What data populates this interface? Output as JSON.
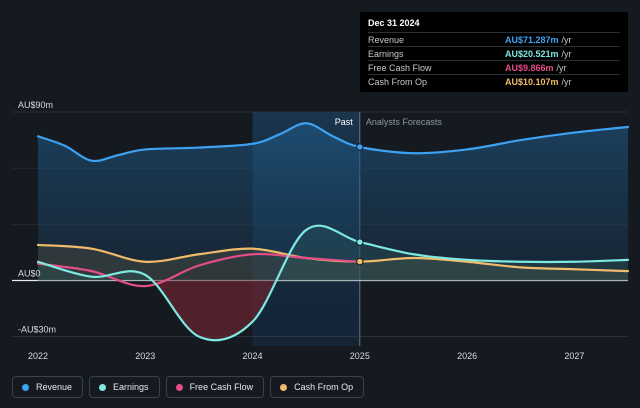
{
  "tooltip": {
    "date": "Dec 31 2024",
    "rows": [
      {
        "label": "Revenue",
        "value": "AU$71.287m",
        "unit": "/yr",
        "color": "#3ea2f2"
      },
      {
        "label": "Earnings",
        "value": "AU$20.521m",
        "unit": "/yr",
        "color": "#7ee8e3"
      },
      {
        "label": "Free Cash Flow",
        "value": "AU$9.866m",
        "unit": "/yr",
        "color": "#e44d87"
      },
      {
        "label": "Cash From Op",
        "value": "AU$10.107m",
        "unit": "/yr",
        "color": "#f0bc6b"
      }
    ]
  },
  "legend": [
    {
      "label": "Revenue",
      "color": "#3ea2f2"
    },
    {
      "label": "Earnings",
      "color": "#7ee8e3"
    },
    {
      "label": "Free Cash Flow",
      "color": "#e44d87"
    },
    {
      "label": "Cash From Op",
      "color": "#f0bc6b"
    }
  ],
  "chart_data": {
    "type": "line",
    "title": "",
    "xlabel": "",
    "ylabel": "",
    "xlim": [
      2022,
      2027.5
    ],
    "ylim": [
      -35,
      90
    ],
    "y_tick_labels": [
      {
        "value": 90,
        "label": "AU$90m"
      },
      {
        "value": 0,
        "label": "AU$0"
      },
      {
        "value": -30,
        "label": "-AU$30m"
      }
    ],
    "x_tick_labels": [
      "2022",
      "2023",
      "2024",
      "2025",
      "2026",
      "2027"
    ],
    "x_tick_values": [
      2022,
      2023,
      2024,
      2025,
      2026,
      2027
    ],
    "past_label": "Past",
    "forecast_label": "Analysts Forecasts",
    "divider_x": 2025,
    "highlight_start": 2024,
    "marker_x": 2025,
    "series": [
      {
        "name": "Revenue",
        "color": "#3ea2f2",
        "points": [
          [
            2022,
            77
          ],
          [
            2022.25,
            72
          ],
          [
            2022.5,
            64
          ],
          [
            2022.75,
            67
          ],
          [
            2023,
            70
          ],
          [
            2023.5,
            71
          ],
          [
            2024,
            73
          ],
          [
            2024.25,
            78
          ],
          [
            2024.5,
            84
          ],
          [
            2024.75,
            77
          ],
          [
            2025,
            71.3
          ],
          [
            2025.5,
            68
          ],
          [
            2026,
            70
          ],
          [
            2026.5,
            75
          ],
          [
            2027,
            79
          ],
          [
            2027.5,
            82
          ]
        ]
      },
      {
        "name": "Earnings",
        "color": "#7ee8e3",
        "points": [
          [
            2022,
            10
          ],
          [
            2022.5,
            2
          ],
          [
            2023,
            3
          ],
          [
            2023.5,
            -30
          ],
          [
            2024,
            -22
          ],
          [
            2024.5,
            27
          ],
          [
            2025,
            20.5
          ],
          [
            2025.5,
            14
          ],
          [
            2026,
            11
          ],
          [
            2026.5,
            10
          ],
          [
            2027,
            10
          ],
          [
            2027.5,
            11
          ]
        ]
      },
      {
        "name": "Free Cash Flow",
        "color": "#e44d87",
        "points": [
          [
            2022,
            9
          ],
          [
            2022.5,
            5
          ],
          [
            2023,
            -3
          ],
          [
            2023.5,
            8
          ],
          [
            2024,
            14
          ],
          [
            2024.5,
            12
          ],
          [
            2025,
            9.9
          ]
        ]
      },
      {
        "name": "Cash From Op",
        "color": "#f0bc6b",
        "points": [
          [
            2022,
            19
          ],
          [
            2022.5,
            17
          ],
          [
            2023,
            10
          ],
          [
            2023.5,
            14
          ],
          [
            2024,
            17
          ],
          [
            2024.5,
            12
          ],
          [
            2025,
            10.1
          ],
          [
            2025.5,
            12
          ],
          [
            2026,
            10
          ],
          [
            2026.5,
            7
          ],
          [
            2027,
            6
          ],
          [
            2027.5,
            5
          ]
        ]
      }
    ]
  }
}
